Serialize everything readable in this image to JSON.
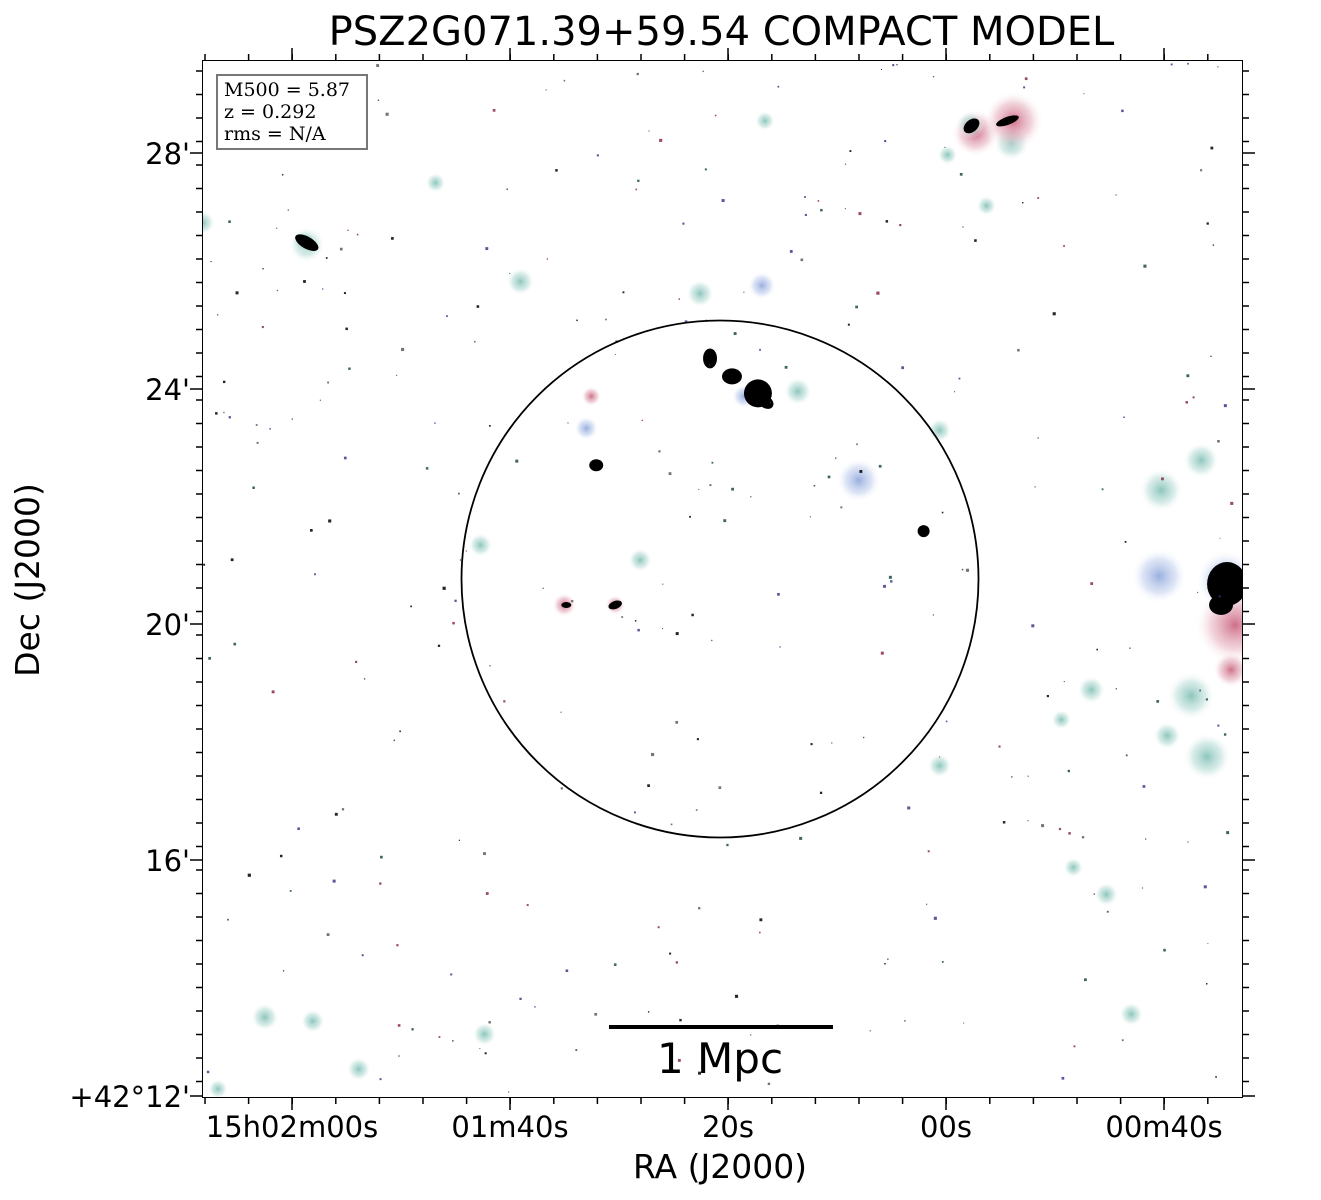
{
  "title": "PSZ2G071.39+59.54 COMPACT MODEL",
  "info": {
    "mass": "M500 = 5.87",
    "redshift": "z = 0.292",
    "rms": "rms = N/A"
  },
  "axes": {
    "xlabel": "RA (J2000)",
    "ylabel": "Dec (J2000)",
    "x_ticks": [
      "15h02m00s",
      "01m40s",
      "20s",
      "00s",
      "00m40s"
    ],
    "y_ticks": [
      "28'",
      "24'",
      "20'",
      "16'",
      "+42°12'"
    ]
  },
  "scale_bar": {
    "label": "1 Mpc"
  },
  "colors": {
    "source_core": "#000000",
    "halo_teal": "#9ccfc8",
    "halo_blue": "#a9b9e0",
    "halo_pink": "#d98aa0"
  }
}
